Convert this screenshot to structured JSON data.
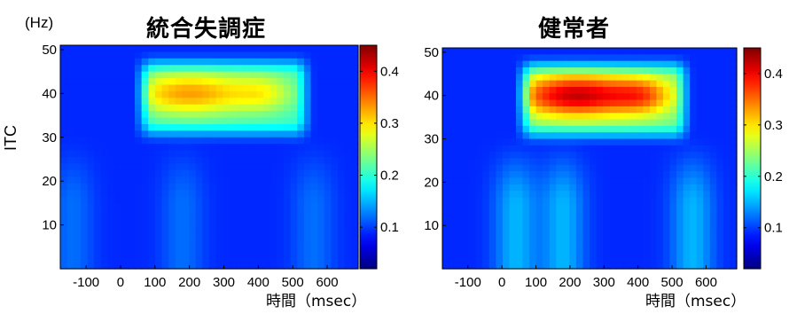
{
  "figure": {
    "unit_label": "(Hz)",
    "y_axis_label": "ITC",
    "colorbar_ticks": [
      "0.1",
      "0.2",
      "0.3",
      "0.4"
    ]
  },
  "chart_data": [
    {
      "type": "heatmap",
      "title": "統合失調症",
      "xlabel": "時間（msec）",
      "ylabel": "ITC",
      "x_ticks": [
        -100,
        0,
        100,
        200,
        300,
        400,
        500,
        600
      ],
      "y_ticks": [
        10,
        20,
        30,
        40,
        50
      ],
      "xlim": [
        -175,
        690
      ],
      "ylim": [
        0,
        51
      ],
      "colorbar": {
        "range": [
          0.02,
          0.45
        ],
        "ticks": [
          0.1,
          0.2,
          0.3,
          0.4
        ],
        "colormap": "jet"
      },
      "z_baseline": 0.09,
      "hotspot": {
        "x_range": [
          60,
          540
        ],
        "y_range": [
          30,
          48
        ],
        "plateau": 0.2,
        "peak": 0.33,
        "peak_x": 200,
        "peak_y": 40
      },
      "low_frequency_streaks": {
        "x_centers": [
          -140,
          180,
          560
        ],
        "value": 0.12
      }
    },
    {
      "type": "heatmap",
      "title": "健常者",
      "xlabel": "時間（msec）",
      "ylabel": "",
      "x_ticks": [
        -100,
        0,
        100,
        200,
        300,
        400,
        500,
        600
      ],
      "y_ticks": [
        10,
        20,
        30,
        40,
        50
      ],
      "xlim": [
        -175,
        690
      ],
      "ylim": [
        0,
        51
      ],
      "colorbar": {
        "range": [
          0.02,
          0.45
        ],
        "ticks": [
          0.1,
          0.2,
          0.3,
          0.4
        ],
        "colormap": "jet"
      },
      "z_baseline": 0.09,
      "hotspot": {
        "x_range": [
          60,
          540
        ],
        "y_range": [
          30,
          48
        ],
        "plateau": 0.22,
        "peak": 0.42,
        "peak_x": 220,
        "peak_y": 40
      },
      "low_frequency_streaks": {
        "x_centers": [
          40,
          180,
          560
        ],
        "value": 0.15
      }
    }
  ]
}
